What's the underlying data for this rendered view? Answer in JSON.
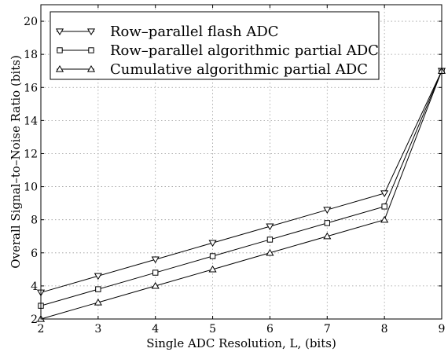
{
  "chart_data": {
    "type": "line",
    "xlabel": "Single ADC Resolution, L, (bits)",
    "ylabel": "Overall Signal–to–Noise Ratio (bits)",
    "xlim": [
      2,
      9
    ],
    "ylim": [
      2,
      21
    ],
    "xticks": [
      "2",
      "3",
      "4",
      "5",
      "6",
      "7",
      "8",
      "9"
    ],
    "yticks": [
      "2",
      "4",
      "6",
      "8",
      "10",
      "12",
      "14",
      "16",
      "18",
      "20"
    ],
    "grid": true,
    "legend_position": "top-left",
    "x": [
      2,
      3,
      4,
      5,
      6,
      7,
      8,
      9
    ],
    "series": [
      {
        "name": "Row–parallel flash ADC",
        "marker": "triangle-down",
        "values": [
          3.6,
          4.6,
          5.6,
          6.6,
          7.6,
          8.6,
          9.6,
          17
        ]
      },
      {
        "name": "Row–parallel algorithmic partial ADC",
        "marker": "square",
        "values": [
          2.8,
          3.8,
          4.8,
          5.8,
          6.8,
          7.8,
          8.8,
          17
        ]
      },
      {
        "name": "Cumulative algorithmic partial ADC",
        "marker": "triangle-up",
        "values": [
          2.0,
          3.0,
          4.0,
          5.0,
          6.0,
          7.0,
          8.0,
          17
        ]
      }
    ]
  }
}
